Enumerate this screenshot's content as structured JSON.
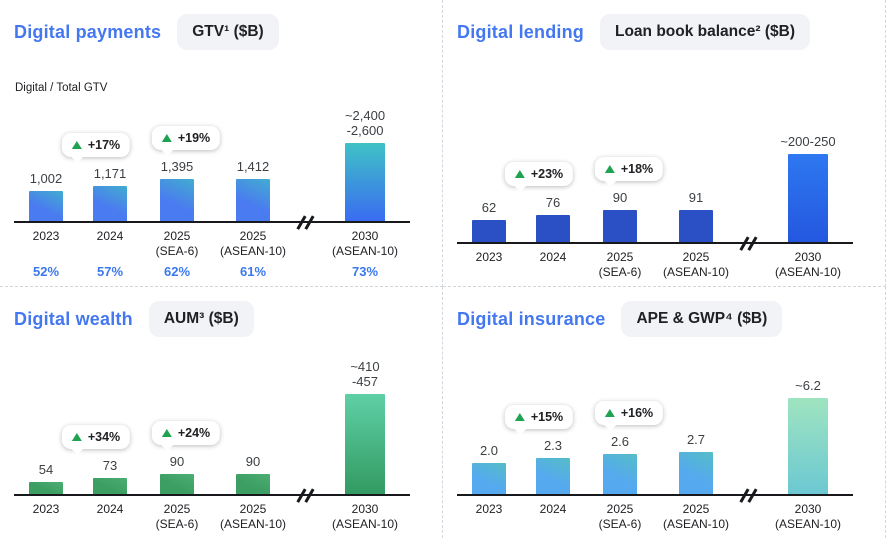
{
  "theme": {
    "title_color": "#4478f0",
    "pill_bg": "#f1f3f6",
    "share_color": "#3b78ee",
    "axis_color": "#17191c",
    "divider_color": "#d2d7df",
    "badge_triangle_green": "#1fa352"
  },
  "chart_data": [
    {
      "type": "bar",
      "title": "Digital payments",
      "metric_label": "GTV¹ ($B)",
      "subtitle": "Digital / Total GTV",
      "categories": [
        "2023",
        "2024",
        "2025 (SEA-6)",
        "2025 (ASEAN-10)",
        "2030 (ASEAN-10)"
      ],
      "tick_labels": [
        "2023",
        "2024",
        "2025\n(SEA-6)",
        "2025\n(ASEAN-10)",
        "2030\n(ASEAN-10)"
      ],
      "values": [
        1002,
        1171,
        1395,
        1412,
        2600
      ],
      "bar_2030_range": [
        2400,
        2600
      ],
      "value_labels": [
        "1,002",
        "1,171",
        "1,395",
        "1,412",
        "~2,400\n-2,600"
      ],
      "growth_badges": [
        {
          "label": "+17%",
          "between_categories": [
            "2023",
            "2024"
          ]
        },
        {
          "label": "+19%",
          "between_categories": [
            "2024",
            "2025 (SEA-6)"
          ]
        }
      ],
      "share_labels": [
        "52%",
        "57%",
        "62%",
        "61%",
        "73%"
      ],
      "ylim": [
        0,
        2600
      ],
      "axis_break_between": [
        "2025 (ASEAN-10)",
        "2030 (ASEAN-10)"
      ],
      "colors": {
        "bar": "#4a7bf0",
        "bar_accent": "#3fbdc5",
        "bar_2030": [
          "#3a6cf0",
          "#3fc2c6"
        ]
      }
    },
    {
      "type": "bar",
      "title": "Digital lending",
      "metric_label": "Loan book balance² ($B)",
      "categories": [
        "2023",
        "2024",
        "2025 (SEA-6)",
        "2025 (ASEAN-10)",
        "2030 (ASEAN-10)"
      ],
      "tick_labels": [
        "2023",
        "2024",
        "2025\n(SEA-6)",
        "2025\n(ASEAN-10)",
        "2030\n(ASEAN-10)"
      ],
      "values": [
        62,
        76,
        90,
        91,
        250
      ],
      "bar_2030_range": [
        200,
        250
      ],
      "value_labels": [
        "62",
        "76",
        "90",
        "91",
        "~200-250"
      ],
      "growth_badges": [
        {
          "label": "+23%",
          "between_categories": [
            "2023",
            "2024"
          ]
        },
        {
          "label": "+18%",
          "between_categories": [
            "2024",
            "2025 (SEA-6)"
          ]
        }
      ],
      "ylim": [
        0,
        250
      ],
      "axis_break_between": [
        "2025 (ASEAN-10)",
        "2030 (ASEAN-10)"
      ],
      "colors": {
        "bar": "#2b4fc4",
        "bar_accent": "#2b4fc4",
        "bar_2030": [
          "#2457e0",
          "#2e78f0"
        ]
      }
    },
    {
      "type": "bar",
      "title": "Digital wealth",
      "metric_label": "AUM³ ($B)",
      "categories": [
        "2023",
        "2024",
        "2025 (SEA-6)",
        "2025 (ASEAN-10)",
        "2030 (ASEAN-10)"
      ],
      "tick_labels": [
        "2023",
        "2024",
        "2025\n(SEA-6)",
        "2025\n(ASEAN-10)",
        "2030\n(ASEAN-10)"
      ],
      "values": [
        54,
        73,
        90,
        90,
        457
      ],
      "bar_2030_range": [
        410,
        457
      ],
      "value_labels": [
        "54",
        "73",
        "90",
        "90",
        "~410\n-457"
      ],
      "growth_badges": [
        {
          "label": "+34%",
          "between_categories": [
            "2023",
            "2024"
          ]
        },
        {
          "label": "+24%",
          "between_categories": [
            "2024",
            "2025 (SEA-6)"
          ]
        }
      ],
      "ylim": [
        0,
        457
      ],
      "axis_break_between": [
        "2025 (ASEAN-10)",
        "2030 (ASEAN-10)"
      ],
      "colors": {
        "bar": "#3d9e63",
        "bar_accent": "#52b379",
        "bar_2030": [
          "#339a62",
          "#5fd0a6"
        ]
      }
    },
    {
      "type": "bar",
      "title": "Digital insurance",
      "metric_label": "APE & GWP⁴ ($B)",
      "categories": [
        "2023",
        "2024",
        "2025 (SEA-6)",
        "2025 (ASEAN-10)",
        "2030 (ASEAN-10)"
      ],
      "tick_labels": [
        "2023",
        "2024",
        "2025\n(SEA-6)",
        "2025\n(ASEAN-10)",
        "2030\n(ASEAN-10)"
      ],
      "values": [
        2.0,
        2.3,
        2.6,
        2.7,
        6.2
      ],
      "value_labels": [
        "2.0",
        "2.3",
        "2.6",
        "2.7",
        "~6.2"
      ],
      "growth_badges": [
        {
          "label": "+15%",
          "between_categories": [
            "2023",
            "2024"
          ]
        },
        {
          "label": "+16%",
          "between_categories": [
            "2024",
            "2025 (SEA-6)"
          ]
        }
      ],
      "ylim": [
        0,
        6.2
      ],
      "axis_break_between": [
        "2025 (ASEAN-10)",
        "2030 (ASEAN-10)"
      ],
      "colors": {
        "bar": "#55a9ef",
        "bar_accent": "#55c4bb",
        "bar_2030": [
          "#6cc8d2",
          "#9fe4c0"
        ]
      }
    }
  ]
}
